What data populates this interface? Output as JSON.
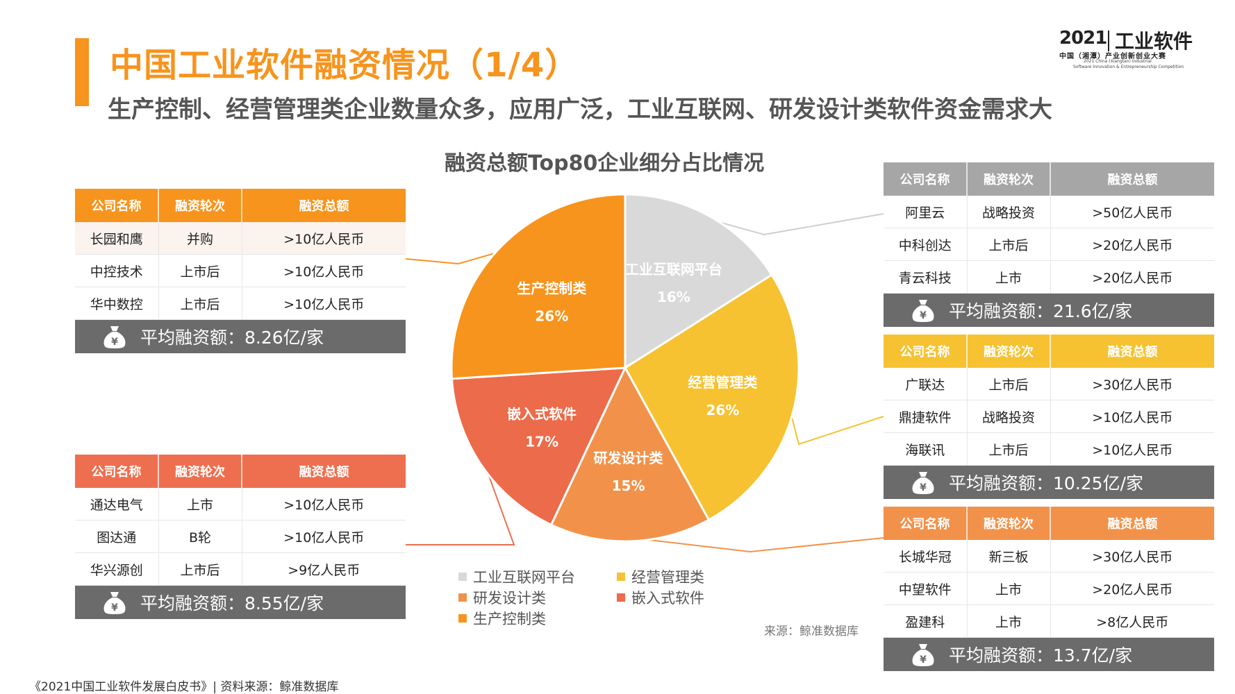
{
  "header": {
    "title": "中国工业软件融资情况（1/4）",
    "subtitle": "生产控制、经营管理类企业数量众多，应用广泛，工业互联网、研发设计类软件资金需求大"
  },
  "logo": {
    "year": "2021",
    "name": "工业软件",
    "line1": "中国（湘潭）产业创新创业大赛",
    "line2": "2021 China (Xiangtan) Industrial",
    "line3": "Software Innovation & Entrepreneurship Competition"
  },
  "chart_data": {
    "type": "pie",
    "title": "融资总额Top80企业细分占比情况",
    "slices": [
      {
        "name": "工业互联网平台",
        "value": 16,
        "label": "16%",
        "color": "#d9d9d9"
      },
      {
        "name": "经营管理类",
        "value": 26,
        "label": "26%",
        "color": "#f6c231"
      },
      {
        "name": "研发设计类",
        "value": 15,
        "label": "15%",
        "color": "#f2924a"
      },
      {
        "name": "嵌入式软件",
        "value": 17,
        "label": "17%",
        "color": "#ec6b4a"
      },
      {
        "name": "生产控制类",
        "value": 26,
        "label": "26%",
        "color": "#f7941d"
      }
    ],
    "legend": [
      "工业互联网平台",
      "经营管理类",
      "研发设计类",
      "嵌入式软件",
      "生产控制类"
    ],
    "legend_position": "bottom"
  },
  "tables": [
    {
      "id": "production",
      "header_color": "#f7941d",
      "headers": [
        "公司名称",
        "融资轮次",
        "融资总额"
      ],
      "rows": [
        [
          "长园和鹰",
          "并购",
          ">10亿人民币"
        ],
        [
          "中控技术",
          "上市后",
          ">10亿人民币"
        ],
        [
          "华中数控",
          "上市后",
          ">10亿人民币"
        ]
      ],
      "avg_label": "平均融资额：",
      "avg_value": "8.26亿/家"
    },
    {
      "id": "embedded",
      "header_color": "#ee6f4f",
      "headers": [
        "公司名称",
        "融资轮次",
        "融资总额"
      ],
      "rows": [
        [
          "通达电气",
          "上市",
          ">10亿人民币"
        ],
        [
          "图达通",
          "B轮",
          ">10亿人民币"
        ],
        [
          "华兴源创",
          "上市后",
          ">9亿人民币"
        ]
      ],
      "avg_label": "平均融资额：",
      "avg_value": "8.55亿/家"
    },
    {
      "id": "internet",
      "header_color": "#a6a6a6",
      "headers": [
        "公司名称",
        "融资轮次",
        "融资总额"
      ],
      "rows": [
        [
          "阿里云",
          "战略投资",
          ">50亿人民币"
        ],
        [
          "中科创达",
          "上市后",
          ">20亿人民币"
        ],
        [
          "青云科技",
          "上市",
          ">20亿人民币"
        ]
      ],
      "avg_label": "平均融资额：",
      "avg_value": "21.6亿/家"
    },
    {
      "id": "management",
      "header_color": "#f6c231",
      "headers": [
        "公司名称",
        "融资轮次",
        "融资总额"
      ],
      "rows": [
        [
          "广联达",
          "上市后",
          ">30亿人民币"
        ],
        [
          "鼎捷软件",
          "战略投资",
          ">10亿人民币"
        ],
        [
          "海联讯",
          "上市后",
          ">10亿人民币"
        ]
      ],
      "avg_label": "平均融资额：",
      "avg_value": "10.25亿/家"
    },
    {
      "id": "rnd",
      "header_color": "#f2924a",
      "headers": [
        "公司名称",
        "融资轮次",
        "融资总额"
      ],
      "rows": [
        [
          "长城华冠",
          "新三板",
          ">30亿人民币"
        ],
        [
          "中望软件",
          "上市",
          ">20亿人民币"
        ],
        [
          "盈建科",
          "上市",
          ">8亿人民币"
        ]
      ],
      "avg_label": "平均融资额：",
      "avg_value": "13.7亿/家"
    }
  ],
  "source_note": "来源：鲸准数据库",
  "footer": "《2021中国工业软件发展白皮书》| 资料来源：鲸准数据库"
}
